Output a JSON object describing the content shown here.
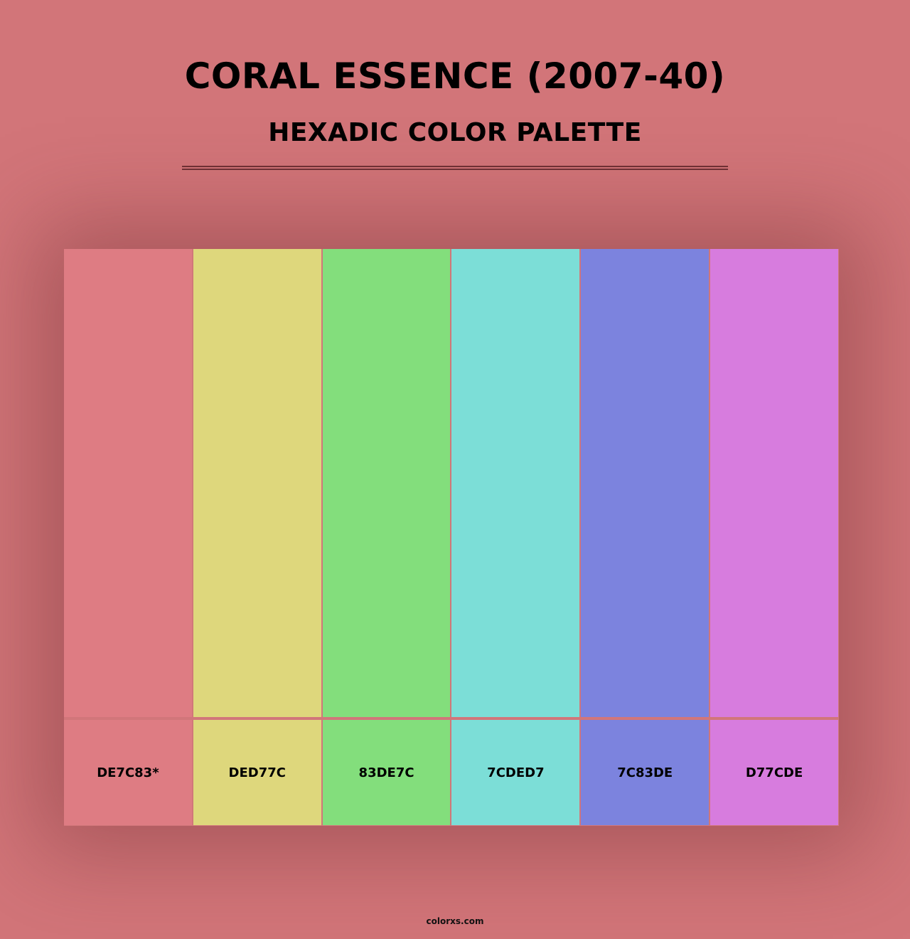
{
  "title": "CORAL ESSENCE (2007-40)",
  "subtitle": "HEXADIC COLOR PALETTE",
  "swatches": [
    {
      "label": "DE7C83*",
      "color": "#DE7C83"
    },
    {
      "label": "DED77C",
      "color": "#DED77C"
    },
    {
      "label": "83DE7C",
      "color": "#83DE7C"
    },
    {
      "label": "7CDED7",
      "color": "#7CDED7"
    },
    {
      "label": "7C83DE",
      "color": "#7C83DE"
    },
    {
      "label": "D77CDE",
      "color": "#D77CDE"
    }
  ],
  "footer": "colorxs.com"
}
